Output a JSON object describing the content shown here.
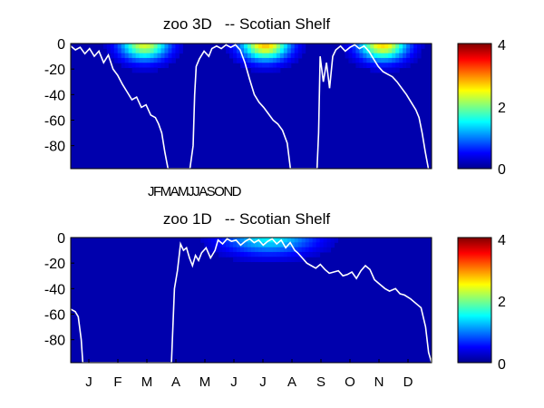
{
  "chart_data": [
    {
      "type": "heatmap",
      "title": "zoo 3D   -- Scotian Shelf",
      "xlabel": "",
      "ylabel": "",
      "ylim": [
        -98,
        0
      ],
      "yticks": [
        0,
        -20,
        -40,
        -60,
        -80
      ],
      "ytick_labels": [
        "0",
        "-20",
        "-40",
        "-60",
        "-80"
      ],
      "x_tick_labels_text": "JFMAMJJASOND",
      "years_shown": 3,
      "colorscale": "jet",
      "colorbar": {
        "range": [
          0,
          4
        ],
        "ticks": [
          0,
          2,
          4
        ],
        "labels": [
          "4",
          "2",
          "0"
        ]
      },
      "white_line_note": "mixed layer depth trace",
      "hotspots": [
        {
          "year": 1,
          "peak_month": 4.7,
          "max_value": 2.2
        },
        {
          "year": 2,
          "peak_month": 4.8,
          "max_value": 2.6
        },
        {
          "year": 3,
          "peak_month": 4.7,
          "max_value": 2.5
        }
      ],
      "line": [
        [
          0.0,
          -2
        ],
        [
          0.3,
          -5
        ],
        [
          0.6,
          -3
        ],
        [
          0.9,
          -8
        ],
        [
          1.2,
          -4
        ],
        [
          1.5,
          -10
        ],
        [
          1.8,
          -6
        ],
        [
          2.1,
          -15
        ],
        [
          2.4,
          -9
        ],
        [
          2.7,
          -20
        ],
        [
          3.0,
          -25
        ],
        [
          3.3,
          -32
        ],
        [
          3.6,
          -38
        ],
        [
          3.9,
          -44
        ],
        [
          4.2,
          -42
        ],
        [
          4.5,
          -50
        ],
        [
          4.8,
          -48
        ],
        [
          5.1,
          -56
        ],
        [
          5.4,
          -58
        ],
        [
          5.6,
          -63
        ],
        [
          5.8,
          -70
        ],
        [
          6.0,
          -85
        ],
        [
          6.2,
          -98
        ],
        [
          7.6,
          -98
        ],
        [
          7.8,
          -80
        ],
        [
          7.9,
          -40
        ],
        [
          8.0,
          -18
        ],
        [
          8.2,
          -12
        ],
        [
          8.5,
          -6
        ],
        [
          8.8,
          -10
        ],
        [
          9.0,
          -4
        ],
        [
          9.3,
          -2
        ],
        [
          9.6,
          -4
        ],
        [
          9.9,
          -1
        ],
        [
          10.2,
          -3
        ],
        [
          10.5,
          -1
        ],
        [
          10.8,
          -5
        ],
        [
          11.1,
          -15
        ],
        [
          11.4,
          -28
        ],
        [
          11.7,
          -40
        ],
        [
          12.0,
          -46
        ],
        [
          12.3,
          -50
        ],
        [
          12.6,
          -55
        ],
        [
          12.9,
          -60
        ],
        [
          13.2,
          -63
        ],
        [
          13.5,
          -68
        ],
        [
          13.8,
          -78
        ],
        [
          14.0,
          -98
        ],
        [
          15.7,
          -98
        ],
        [
          15.8,
          -70
        ],
        [
          15.9,
          -10
        ],
        [
          16.1,
          -30
        ],
        [
          16.3,
          -15
        ],
        [
          16.5,
          -35
        ],
        [
          16.7,
          -10
        ],
        [
          16.9,
          -5
        ],
        [
          17.2,
          -2
        ],
        [
          17.5,
          -6
        ],
        [
          17.8,
          -3
        ],
        [
          18.1,
          -1
        ],
        [
          18.4,
          -4
        ],
        [
          18.7,
          -2
        ],
        [
          19.0,
          -6
        ],
        [
          19.3,
          -12
        ],
        [
          19.6,
          -18
        ],
        [
          19.9,
          -22
        ],
        [
          20.2,
          -24
        ],
        [
          20.5,
          -26
        ],
        [
          20.8,
          -30
        ],
        [
          21.1,
          -35
        ],
        [
          21.4,
          -40
        ],
        [
          21.7,
          -46
        ],
        [
          22.0,
          -52
        ],
        [
          22.2,
          -58
        ],
        [
          22.4,
          -70
        ],
        [
          22.6,
          -85
        ],
        [
          22.8,
          -98
        ]
      ]
    },
    {
      "type": "heatmap",
      "title": "zoo 1D   -- Scotian Shelf",
      "xlabel": "",
      "ylabel": "",
      "ylim": [
        -98,
        0
      ],
      "yticks": [
        0,
        -20,
        -40,
        -60,
        -80
      ],
      "ytick_labels": [
        "0",
        "-20",
        "-40",
        "-60",
        "-80"
      ],
      "months": [
        "J",
        "F",
        "M",
        "A",
        "M",
        "J",
        "J",
        "A",
        "S",
        "O",
        "N",
        "D"
      ],
      "colorscale": "jet",
      "colorbar": {
        "range": [
          0,
          4
        ],
        "ticks": [
          0,
          2,
          4
        ],
        "labels": [
          "4",
          "2",
          "0"
        ]
      },
      "white_line_note": "mixed layer depth trace",
      "hotspot": {
        "peak_month": 6.6,
        "max_value": 1.3
      },
      "line": [
        [
          0.0,
          -56
        ],
        [
          0.15,
          -58
        ],
        [
          0.25,
          -62
        ],
        [
          0.35,
          -80
        ],
        [
          0.4,
          -98
        ],
        [
          3.35,
          -98
        ],
        [
          3.45,
          -40
        ],
        [
          3.55,
          -26
        ],
        [
          3.65,
          -5
        ],
        [
          3.75,
          -10
        ],
        [
          3.85,
          -8
        ],
        [
          3.95,
          -16
        ],
        [
          4.05,
          -22
        ],
        [
          4.15,
          -14
        ],
        [
          4.25,
          -18
        ],
        [
          4.35,
          -12
        ],
        [
          4.5,
          -8
        ],
        [
          4.65,
          -16
        ],
        [
          4.8,
          -10
        ],
        [
          4.9,
          -2
        ],
        [
          5.05,
          -5
        ],
        [
          5.2,
          -1
        ],
        [
          5.35,
          -3
        ],
        [
          5.5,
          -2
        ],
        [
          5.65,
          -6
        ],
        [
          5.8,
          -3
        ],
        [
          5.95,
          -1
        ],
        [
          6.1,
          -4
        ],
        [
          6.25,
          -2
        ],
        [
          6.4,
          -6
        ],
        [
          6.55,
          -3
        ],
        [
          6.7,
          -1
        ],
        [
          6.85,
          -5
        ],
        [
          7.0,
          -2
        ],
        [
          7.15,
          -8
        ],
        [
          7.3,
          -4
        ],
        [
          7.45,
          -10
        ],
        [
          7.55,
          -12
        ],
        [
          7.7,
          -16
        ],
        [
          7.85,
          -20
        ],
        [
          8.0,
          -22
        ],
        [
          8.15,
          -24
        ],
        [
          8.3,
          -21
        ],
        [
          8.45,
          -25
        ],
        [
          8.6,
          -28
        ],
        [
          8.75,
          -27
        ],
        [
          8.9,
          -26
        ],
        [
          9.05,
          -30
        ],
        [
          9.2,
          -29
        ],
        [
          9.35,
          -27
        ],
        [
          9.5,
          -32
        ],
        [
          9.65,
          -26
        ],
        [
          9.8,
          -22
        ],
        [
          9.95,
          -25
        ],
        [
          10.1,
          -33
        ],
        [
          10.3,
          -37
        ],
        [
          10.45,
          -40
        ],
        [
          10.6,
          -42
        ],
        [
          10.8,
          -40
        ],
        [
          10.95,
          -44
        ],
        [
          11.1,
          -45
        ],
        [
          11.3,
          -48
        ],
        [
          11.5,
          -52
        ],
        [
          11.65,
          -55
        ],
        [
          11.8,
          -70
        ],
        [
          11.9,
          -90
        ],
        [
          12.0,
          -98
        ]
      ]
    }
  ]
}
